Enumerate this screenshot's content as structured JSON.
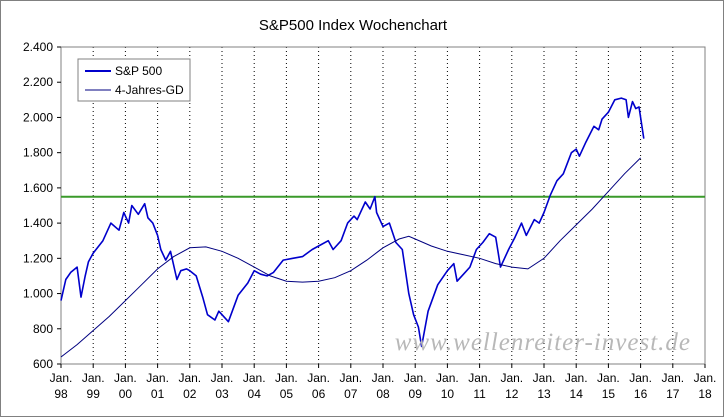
{
  "chart_data": {
    "type": "line",
    "title": "S&P500 Index Wochenchart",
    "ylim": [
      600,
      2400
    ],
    "yticks": [
      600,
      800,
      1000,
      1200,
      1400,
      1600,
      1800,
      2000,
      2200,
      2400
    ],
    "ytick_labels": [
      "600",
      "800",
      "1.000",
      "1.200",
      "1.400",
      "1.600",
      "1.800",
      "2.000",
      "2.200",
      "2.400"
    ],
    "xlim": [
      1998,
      2018
    ],
    "xticks": [
      {
        "x": 1998,
        "month": "Jan.",
        "year": "98"
      },
      {
        "x": 1999,
        "month": "Jan.",
        "year": "99"
      },
      {
        "x": 2000,
        "month": "Jan.",
        "year": "00"
      },
      {
        "x": 2001,
        "month": "Jan.",
        "year": "01"
      },
      {
        "x": 2002,
        "month": "Jan.",
        "year": "02"
      },
      {
        "x": 2003,
        "month": "Jan.",
        "year": "03"
      },
      {
        "x": 2004,
        "month": "Jan.",
        "year": "04"
      },
      {
        "x": 2005,
        "month": "Jan.",
        "year": "05"
      },
      {
        "x": 2006,
        "month": "Jan.",
        "year": "06"
      },
      {
        "x": 2007,
        "month": "Jan.",
        "year": "07"
      },
      {
        "x": 2008,
        "month": "Jan.",
        "year": "08"
      },
      {
        "x": 2009,
        "month": "Jan.",
        "year": "09"
      },
      {
        "x": 2010,
        "month": "Jan.",
        "year": "10"
      },
      {
        "x": 2011,
        "month": "Jan.",
        "year": "11"
      },
      {
        "x": 2012,
        "month": "Jan.",
        "year": "12"
      },
      {
        "x": 2013,
        "month": "Jan.",
        "year": "13"
      },
      {
        "x": 2014,
        "month": "Jan.",
        "year": "14"
      },
      {
        "x": 2015,
        "month": "Jan.",
        "year": "15"
      },
      {
        "x": 2016,
        "month": "Jan.",
        "year": "16"
      },
      {
        "x": 2017,
        "month": "Jan.",
        "year": "17"
      },
      {
        "x": 2018,
        "month": "Jan.",
        "year": "18"
      }
    ],
    "grid": "vertical-dotted",
    "legend_position": "top-left",
    "series": [
      {
        "name": "S&P 500",
        "color": "#0000cc",
        "x": [
          1998.0,
          1998.15,
          1998.3,
          1998.5,
          1998.62,
          1998.75,
          1998.85,
          1999.0,
          1999.3,
          1999.55,
          1999.8,
          1999.95,
          2000.1,
          2000.2,
          2000.4,
          2000.6,
          2000.7,
          2000.85,
          2001.0,
          2001.1,
          2001.25,
          2001.4,
          2001.6,
          2001.72,
          2001.9,
          2002.0,
          2002.2,
          2002.4,
          2002.55,
          2002.78,
          2002.9,
          2003.1,
          2003.2,
          2003.5,
          2003.8,
          2004.0,
          2004.2,
          2004.4,
          2004.6,
          2004.9,
          2005.2,
          2005.5,
          2005.8,
          2006.0,
          2006.3,
          2006.45,
          2006.7,
          2006.9,
          2007.1,
          2007.2,
          2007.45,
          2007.6,
          2007.75,
          2007.8,
          2008.0,
          2008.2,
          2008.4,
          2008.6,
          2008.8,
          2008.95,
          2009.1,
          2009.2,
          2009.4,
          2009.7,
          2010.0,
          2010.2,
          2010.3,
          2010.5,
          2010.7,
          2010.9,
          2011.1,
          2011.3,
          2011.5,
          2011.65,
          2011.9,
          2012.1,
          2012.3,
          2012.45,
          2012.7,
          2012.85,
          2013.0,
          2013.2,
          2013.4,
          2013.6,
          2013.85,
          2014.0,
          2014.1,
          2014.3,
          2014.55,
          2014.7,
          2014.8,
          2015.0,
          2015.2,
          2015.4,
          2015.55,
          2015.62,
          2015.75,
          2015.85,
          2015.95,
          2016.05,
          2016.1
        ],
        "values": [
          960,
          1080,
          1120,
          1150,
          980,
          1100,
          1180,
          1230,
          1300,
          1400,
          1360,
          1460,
          1400,
          1500,
          1450,
          1510,
          1430,
          1400,
          1330,
          1250,
          1190,
          1240,
          1080,
          1130,
          1140,
          1130,
          1100,
          980,
          880,
          850,
          900,
          860,
          840,
          990,
          1060,
          1130,
          1110,
          1100,
          1120,
          1190,
          1200,
          1210,
          1250,
          1270,
          1300,
          1250,
          1300,
          1400,
          1440,
          1420,
          1520,
          1480,
          1550,
          1460,
          1380,
          1400,
          1290,
          1250,
          1000,
          880,
          810,
          700,
          900,
          1050,
          1130,
          1170,
          1070,
          1110,
          1150,
          1250,
          1290,
          1340,
          1320,
          1150,
          1250,
          1320,
          1400,
          1330,
          1420,
          1400,
          1460,
          1560,
          1640,
          1680,
          1800,
          1820,
          1780,
          1860,
          1950,
          1930,
          1990,
          2030,
          2100,
          2110,
          2100,
          2000,
          2090,
          2050,
          2060,
          1940,
          1880
        ]
      },
      {
        "name": "4-Jahres-GD",
        "color": "#000080",
        "x": [
          1998.0,
          1998.5,
          1999.0,
          1999.5,
          2000.0,
          2000.5,
          2001.0,
          2001.5,
          2002.0,
          2002.5,
          2003.0,
          2003.5,
          2004.0,
          2004.5,
          2005.0,
          2005.5,
          2006.0,
          2006.5,
          2007.0,
          2007.5,
          2008.0,
          2008.5,
          2008.8,
          2009.0,
          2009.5,
          2010.0,
          2010.5,
          2011.0,
          2011.5,
          2012.0,
          2012.5,
          2013.0,
          2013.5,
          2014.0,
          2014.5,
          2015.0,
          2015.5,
          2016.0
        ],
        "values": [
          640,
          710,
          790,
          870,
          960,
          1050,
          1140,
          1210,
          1260,
          1265,
          1240,
          1200,
          1150,
          1100,
          1070,
          1065,
          1070,
          1090,
          1130,
          1190,
          1260,
          1310,
          1325,
          1310,
          1270,
          1240,
          1220,
          1200,
          1170,
          1150,
          1140,
          1200,
          1300,
          1390,
          1480,
          1580,
          1680,
          1770
        ]
      }
    ],
    "reference_line": {
      "value": 1550,
      "color": "#3a9a2a"
    },
    "watermark": "www.wellenreiter-invest.de"
  }
}
